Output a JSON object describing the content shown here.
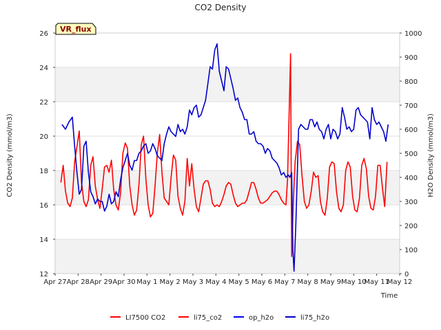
{
  "chart_data": {
    "type": "line",
    "title": "CO2 Density",
    "xlabel": "Time",
    "ylabel": "CO2 Density (mmol/m3)",
    "y2label": "H2O Density (mmol/m3)",
    "badge": "VR_flux",
    "ylim": [
      12,
      26
    ],
    "y2lim": [
      0,
      1000
    ],
    "yticks": [
      12,
      14,
      16,
      18,
      20,
      22,
      24,
      26
    ],
    "y2ticks": [
      0,
      100,
      200,
      300,
      400,
      500,
      600,
      700,
      800,
      900,
      1000
    ],
    "x_categories": [
      "Apr 27",
      "Apr 28",
      "Apr 29",
      "Apr 30",
      "May 1",
      "May 2",
      "May 3",
      "May 4",
      "May 5",
      "May 6",
      "May 7",
      "May 8",
      "May 9",
      "May 10",
      "May 11",
      "May 12"
    ],
    "bands": [
      [
        12,
        14
      ],
      [
        16,
        18
      ],
      [
        22,
        24
      ]
    ],
    "legend_position": "bottom",
    "series": [
      {
        "name": "LI7500 CO2",
        "axis": "left",
        "color": "#ff0000",
        "x": [],
        "values": []
      },
      {
        "name": "li75_co2",
        "axis": "left",
        "color": "#ff0000",
        "x": [
          0.25,
          0.35,
          0.45,
          0.55,
          0.65,
          0.75,
          0.85,
          0.95,
          1.05,
          1.15,
          1.25,
          1.35,
          1.45,
          1.55,
          1.65,
          1.75,
          1.85,
          1.95,
          2.05,
          2.15,
          2.25,
          2.35,
          2.45,
          2.55,
          2.65,
          2.75,
          2.85,
          2.95,
          3.05,
          3.15,
          3.25,
          3.35,
          3.45,
          3.55,
          3.65,
          3.75,
          3.85,
          3.95,
          4.05,
          4.15,
          4.25,
          4.35,
          4.45,
          4.55,
          4.65,
          4.75,
          4.85,
          4.95,
          5.05,
          5.15,
          5.25,
          5.35,
          5.45,
          5.55,
          5.65,
          5.75,
          5.85,
          5.95,
          6.05,
          6.15,
          6.25,
          6.35,
          6.45,
          6.55,
          6.65,
          6.75,
          6.85,
          6.95,
          7.05,
          7.15,
          7.25,
          7.35,
          7.45,
          7.55,
          7.65,
          7.75,
          7.85,
          7.95,
          8.05,
          8.15,
          8.25,
          8.35,
          8.45,
          8.55,
          8.65,
          8.75,
          8.85,
          8.95,
          9.05,
          9.15,
          9.25,
          9.35,
          9.45,
          9.55,
          9.65,
          9.75,
          9.85,
          9.95,
          10.05,
          10.12,
          10.2,
          10.25,
          10.3,
          10.38,
          10.45,
          10.55,
          10.65,
          10.75,
          10.85,
          10.95,
          11.05,
          11.15,
          11.25,
          11.35,
          11.45,
          11.55,
          11.65,
          11.75,
          11.85,
          11.95,
          12.05,
          12.15,
          12.25,
          12.35,
          12.45,
          12.55,
          12.65,
          12.75,
          12.85,
          12.95,
          13.05,
          13.15,
          13.25,
          13.35,
          13.45,
          13.55,
          13.65,
          13.75,
          13.85,
          13.95,
          14.05,
          14.15,
          14.25,
          14.35,
          14.45
        ],
        "values": [
          17.3,
          18.3,
          16.8,
          16.1,
          15.9,
          16.4,
          18.5,
          19.4,
          20.3,
          17.3,
          16.2,
          15.9,
          16.3,
          18.3,
          18.8,
          17.1,
          16.3,
          15.8,
          16.9,
          18.2,
          18.3,
          17.9,
          18.6,
          16.9,
          16.0,
          15.7,
          16.7,
          19.0,
          19.6,
          19.3,
          17.1,
          16.0,
          15.4,
          15.7,
          17.2,
          19.5,
          20.0,
          17.5,
          16.0,
          15.3,
          15.5,
          17.1,
          19.0,
          20.1,
          17.9,
          16.4,
          16.2,
          16.0,
          17.6,
          18.9,
          18.6,
          16.5,
          15.8,
          15.4,
          16.2,
          18.7,
          17.1,
          18.4,
          16.9,
          15.9,
          15.6,
          16.4,
          17.2,
          17.4,
          17.4,
          16.9,
          16.1,
          15.9,
          16.0,
          15.9,
          16.2,
          16.6,
          17.1,
          17.3,
          17.2,
          16.6,
          16.1,
          15.9,
          16.0,
          16.1,
          16.1,
          16.3,
          16.8,
          17.3,
          17.3,
          16.9,
          16.4,
          16.1,
          16.1,
          16.2,
          16.3,
          16.5,
          16.7,
          16.8,
          16.8,
          16.6,
          16.3,
          16.1,
          16.0,
          17.5,
          22.0,
          24.8,
          13.0,
          16.5,
          18.5,
          19.7,
          19.5,
          17.7,
          16.2,
          15.8,
          16.0,
          16.8,
          17.9,
          17.6,
          17.7,
          16.2,
          15.6,
          15.4,
          16.4,
          18.2,
          18.5,
          18.4,
          16.8,
          15.8,
          15.6,
          16.0,
          18.0,
          18.5,
          18.2,
          16.5,
          15.7,
          15.6,
          16.4,
          18.3,
          18.7,
          18.1,
          16.5,
          15.8,
          15.7,
          16.5,
          18.3,
          18.3,
          17.0,
          15.9,
          18.5
        ]
      },
      {
        "name": "op_h2o",
        "axis": "right",
        "color": "#0000ff",
        "x": [],
        "values": []
      },
      {
        "name": "li75_h2o",
        "axis": "right",
        "color": "#0000cc",
        "x": [
          0.3,
          0.45,
          0.6,
          0.75,
          0.85,
          0.95,
          1.05,
          1.15,
          1.25,
          1.35,
          1.45,
          1.55,
          1.65,
          1.75,
          1.85,
          1.95,
          2.05,
          2.15,
          2.25,
          2.35,
          2.45,
          2.55,
          2.65,
          2.75,
          2.85,
          2.95,
          3.05,
          3.15,
          3.25,
          3.35,
          3.45,
          3.55,
          3.65,
          3.75,
          3.85,
          3.95,
          4.05,
          4.15,
          4.25,
          4.35,
          4.45,
          4.55,
          4.65,
          4.75,
          4.85,
          4.95,
          5.05,
          5.15,
          5.25,
          5.35,
          5.45,
          5.55,
          5.65,
          5.75,
          5.85,
          5.95,
          6.05,
          6.15,
          6.25,
          6.35,
          6.45,
          6.55,
          6.65,
          6.75,
          6.85,
          6.95,
          7.05,
          7.15,
          7.25,
          7.35,
          7.45,
          7.55,
          7.65,
          7.75,
          7.85,
          7.95,
          8.05,
          8.15,
          8.25,
          8.35,
          8.45,
          8.55,
          8.65,
          8.75,
          8.85,
          8.95,
          9.05,
          9.15,
          9.25,
          9.35,
          9.45,
          9.55,
          9.65,
          9.75,
          9.85,
          9.95,
          10.05,
          10.15,
          10.22,
          10.3,
          10.35,
          10.4,
          10.48,
          10.6,
          10.7,
          10.8,
          10.9,
          11.0,
          11.1,
          11.2,
          11.3,
          11.4,
          11.5,
          11.6,
          11.7,
          11.8,
          11.9,
          12.0,
          12.1,
          12.2,
          12.3,
          12.4,
          12.5,
          12.6,
          12.7,
          12.8,
          12.9,
          13.0,
          13.1,
          13.2,
          13.3,
          13.4,
          13.5,
          13.6,
          13.7,
          13.8,
          13.9,
          14.0,
          14.1,
          14.2,
          14.3,
          14.4,
          14.5
        ],
        "values": [
          620,
          600,
          630,
          650,
          530,
          420,
          330,
          350,
          530,
          550,
          420,
          340,
          320,
          290,
          310,
          300,
          300,
          260,
          280,
          330,
          290,
          300,
          340,
          320,
          390,
          440,
          470,
          500,
          450,
          430,
          470,
          470,
          500,
          510,
          530,
          540,
          500,
          510,
          540,
          520,
          490,
          480,
          470,
          540,
          580,
          610,
          590,
          580,
          570,
          620,
          590,
          600,
          580,
          610,
          680,
          660,
          690,
          700,
          650,
          660,
          690,
          720,
          790,
          860,
          850,
          930,
          955,
          840,
          800,
          760,
          860,
          850,
          810,
          770,
          720,
          730,
          690,
          670,
          640,
          640,
          580,
          580,
          590,
          550,
          540,
          540,
          530,
          500,
          520,
          510,
          480,
          470,
          460,
          440,
          410,
          420,
          400,
          410,
          400,
          420,
          100,
          10,
          200,
          600,
          620,
          610,
          600,
          600,
          640,
          640,
          610,
          630,
          600,
          590,
          560,
          600,
          620,
          560,
          600,
          590,
          560,
          580,
          690,
          650,
          600,
          610,
          590,
          600,
          680,
          690,
          660,
          650,
          640,
          630,
          560,
          690,
          640,
          620,
          630,
          610,
          590,
          550,
          620
        ]
      }
    ]
  }
}
